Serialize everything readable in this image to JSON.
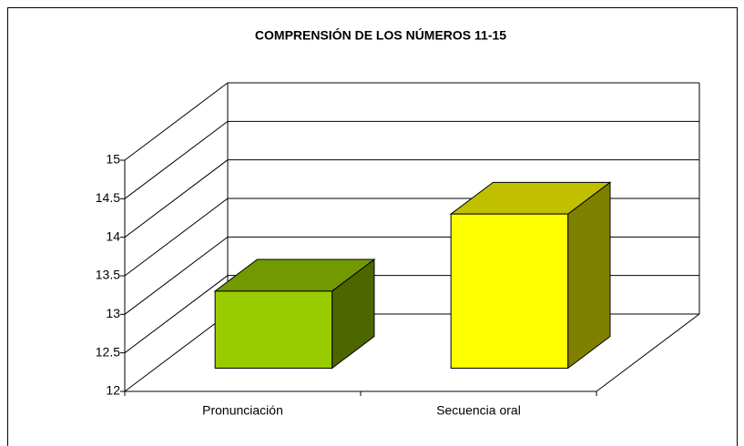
{
  "chart_data": {
    "type": "bar",
    "title": "COMPRENSIÓN DE LOS NÚMEROS 11-15",
    "categories": [
      "Pronunciación",
      "Secuencia oral"
    ],
    "values": [
      13,
      14
    ],
    "colors": [
      {
        "front": "#99cc00",
        "top": "#739900",
        "side": "#4d6600"
      },
      {
        "front": "#ffff00",
        "top": "#c0c000",
        "side": "#808000"
      }
    ],
    "ylim": [
      12,
      15
    ],
    "yticks": [
      12,
      12.5,
      13,
      13.5,
      14,
      14.5,
      15
    ],
    "grid": true
  }
}
